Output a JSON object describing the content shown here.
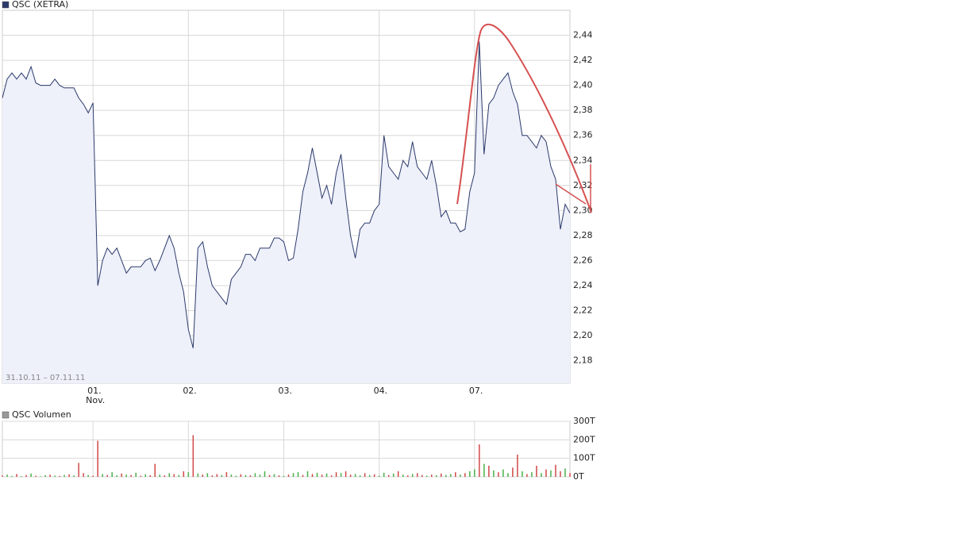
{
  "chart_data": [
    {
      "type": "line",
      "title": "QSC (XETRA)",
      "subtitle": "31.10.11 – 07.11.11",
      "month_label": "Nov.",
      "color": "#2b3a6b",
      "fill_color": "#eef0fa",
      "values": [
        2.39,
        2.405,
        2.41,
        2.405,
        2.41,
        2.405,
        2.415,
        2.402,
        2.4,
        2.4,
        2.4,
        2.405,
        2.4,
        2.398,
        2.398,
        2.398,
        2.39,
        2.385,
        2.378,
        2.386,
        2.24,
        2.26,
        2.27,
        2.265,
        2.27,
        2.26,
        2.25,
        2.255,
        2.255,
        2.255,
        2.26,
        2.262,
        2.252,
        2.26,
        2.27,
        2.28,
        2.27,
        2.25,
        2.235,
        2.205,
        2.19,
        2.27,
        2.275,
        2.255,
        2.24,
        2.235,
        2.23,
        2.225,
        2.245,
        2.25,
        2.255,
        2.265,
        2.265,
        2.26,
        2.27,
        2.27,
        2.27,
        2.278,
        2.278,
        2.275,
        2.26,
        2.262,
        2.285,
        2.315,
        2.33,
        2.35,
        2.33,
        2.31,
        2.32,
        2.305,
        2.33,
        2.345,
        2.31,
        2.28,
        2.262,
        2.285,
        2.29,
        2.29,
        2.3,
        2.305,
        2.36,
        2.335,
        2.33,
        2.325,
        2.34,
        2.335,
        2.355,
        2.335,
        2.33,
        2.325,
        2.34,
        2.32,
        2.295,
        2.3,
        2.29,
        2.29,
        2.283,
        2.285,
        2.315,
        2.33,
        2.435,
        2.345,
        2.385,
        2.39,
        2.4,
        2.405,
        2.41,
        2.395,
        2.385,
        2.36,
        2.36,
        2.355,
        2.35,
        2.36,
        2.355,
        2.335,
        2.325,
        2.285,
        2.305,
        2.298
      ],
      "xlim": [
        0,
        119
      ],
      "xticks": [
        {
          "value": 19,
          "label": "01."
        },
        {
          "value": 39,
          "label": "02."
        },
        {
          "value": 59,
          "label": "03."
        },
        {
          "value": 79,
          "label": "04."
        },
        {
          "value": 99,
          "label": "07."
        }
      ],
      "ylim": [
        2.162,
        2.46
      ],
      "yticks": [
        {
          "value": 2.18,
          "label": "2,18"
        },
        {
          "value": 2.2,
          "label": "2,20"
        },
        {
          "value": 2.22,
          "label": "2,22"
        },
        {
          "value": 2.24,
          "label": "2,24"
        },
        {
          "value": 2.26,
          "label": "2,26"
        },
        {
          "value": 2.28,
          "label": "2,28"
        },
        {
          "value": 2.3,
          "label": "2,30"
        },
        {
          "value": 2.32,
          "label": "2,32"
        },
        {
          "value": 2.34,
          "label": "2,34"
        },
        {
          "value": 2.36,
          "label": "2,36"
        },
        {
          "value": 2.38,
          "label": "2,38"
        },
        {
          "value": 2.4,
          "label": "2,40"
        },
        {
          "value": 2.42,
          "label": "2,42"
        },
        {
          "value": 2.44,
          "label": "2,44"
        }
      ],
      "grid": true
    },
    {
      "type": "bar",
      "title": "QSC Volumen",
      "color": "#999999",
      "values": [
        8,
        12,
        5,
        15,
        4,
        10,
        18,
        6,
        3,
        9,
        12,
        7,
        5,
        10,
        14,
        8,
        75,
        20,
        10,
        6,
        195,
        15,
        10,
        25,
        8,
        18,
        12,
        10,
        22,
        6,
        14,
        9,
        70,
        12,
        8,
        20,
        15,
        10,
        30,
        25,
        225,
        18,
        12,
        20,
        8,
        15,
        10,
        25,
        12,
        6,
        14,
        10,
        8,
        20,
        12,
        30,
        10,
        15,
        8,
        5,
        12,
        20,
        25,
        10,
        30,
        15,
        22,
        12,
        18,
        8,
        25,
        20,
        30,
        12,
        15,
        8,
        20,
        10,
        14,
        6,
        22,
        10,
        18,
        30,
        12,
        8,
        15,
        20,
        10,
        6,
        12,
        8,
        18,
        10,
        15,
        25,
        12,
        20,
        30,
        40,
        175,
        70,
        60,
        35,
        25,
        40,
        20,
        50,
        120,
        30,
        15,
        25,
        60,
        20,
        40,
        35,
        65,
        30,
        45,
        20
      ],
      "colors": [
        "#d04848",
        "#48b048",
        "#48b048",
        "#d04848",
        "#48b048",
        "#d04848",
        "#48b048",
        "#d04848",
        "#48b048",
        "#48b048",
        "#d04848",
        "#48b048",
        "#d04848",
        "#48b048",
        "#d04848",
        "#48b048",
        "#d04848",
        "#d04848",
        "#48b048",
        "#d04848",
        "#d04848",
        "#48b048",
        "#d04848",
        "#48b048",
        "#48b048",
        "#d04848",
        "#48b048",
        "#d04848",
        "#48b048",
        "#d04848",
        "#48b048",
        "#d04848",
        "#d04848",
        "#48b048",
        "#d04848",
        "#48b048",
        "#d04848",
        "#48b048",
        "#d04848",
        "#48b048",
        "#d04848",
        "#48b048",
        "#d04848",
        "#48b048",
        "#d04848",
        "#d04848",
        "#48b048",
        "#d04848",
        "#48b048",
        "#48b048",
        "#d04848",
        "#48b048",
        "#d04848",
        "#48b048",
        "#48b048",
        "#48b048",
        "#d04848",
        "#48b048",
        "#d04848",
        "#48b048",
        "#d04848",
        "#48b048",
        "#48b048",
        "#d04848",
        "#48b048",
        "#d04848",
        "#48b048",
        "#d04848",
        "#48b048",
        "#d04848",
        "#d04848",
        "#48b048",
        "#d04848",
        "#d04848",
        "#48b048",
        "#48b048",
        "#d04848",
        "#48b048",
        "#d04848",
        "#48b048",
        "#48b048",
        "#d04848",
        "#48b048",
        "#d04848",
        "#48b048",
        "#d04848",
        "#48b048",
        "#d04848",
        "#d04848",
        "#48b048",
        "#d04848",
        "#48b048",
        "#d04848",
        "#48b048",
        "#48b048",
        "#d04848",
        "#48b048",
        "#d04848",
        "#48b048",
        "#48b048",
        "#d04848",
        "#48b048",
        "#d04848",
        "#48b048",
        "#d04848",
        "#48b048",
        "#48b048",
        "#d04848",
        "#d04848",
        "#48b048",
        "#d04848",
        "#48b048",
        "#d04848",
        "#48b048",
        "#d04848",
        "#48b048",
        "#d04848",
        "#d04848",
        "#48b048",
        "#d04848"
      ],
      "xlim": [
        0,
        119
      ],
      "ylim": [
        0,
        300
      ],
      "yticks": [
        {
          "value": 0,
          "label": "0T"
        },
        {
          "value": 100,
          "label": "100T"
        },
        {
          "value": 200,
          "label": "200T"
        },
        {
          "value": 300,
          "label": "300T"
        }
      ],
      "grid": true
    }
  ]
}
